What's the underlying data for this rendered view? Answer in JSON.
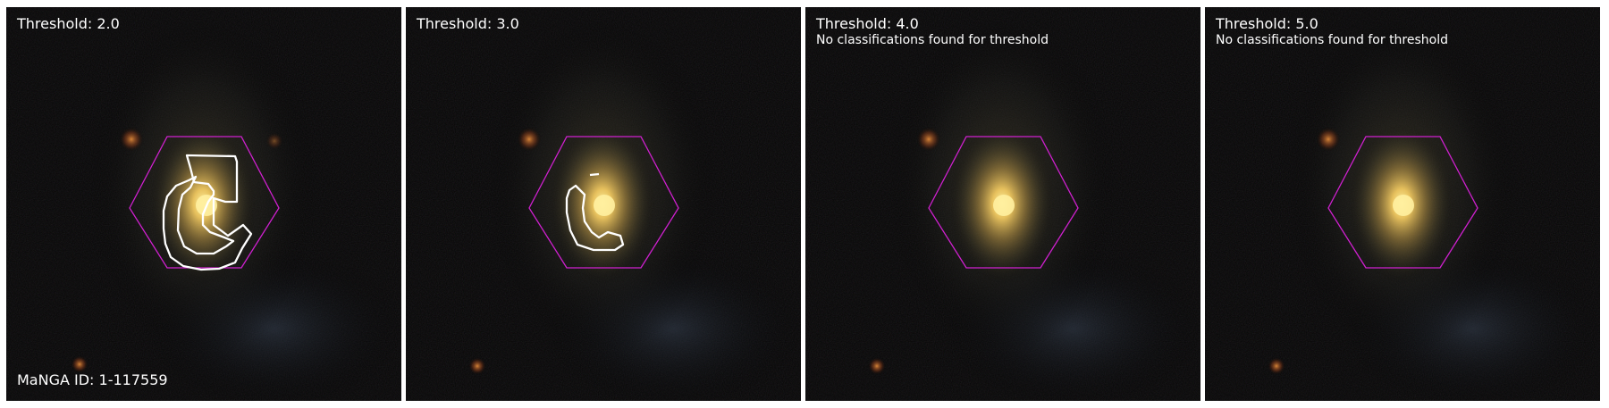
{
  "panels": [
    {
      "threshold_label": "Threshold: 2.0",
      "message": "",
      "id_label": "MaNGA ID: 1-117559"
    },
    {
      "threshold_label": "Threshold: 3.0",
      "message": "",
      "id_label": ""
    },
    {
      "threshold_label": "Threshold: 4.0",
      "message": "No classifications found for threshold",
      "id_label": ""
    },
    {
      "threshold_label": "Threshold: 5.0",
      "message": "No classifications found for threshold",
      "id_label": ""
    }
  ],
  "colors": {
    "hexagon": "#d020d0",
    "contour": "#ffffff",
    "galaxy_core": "#ffe27a",
    "galaxy_halo": "#b8a050",
    "background": "#050505"
  }
}
